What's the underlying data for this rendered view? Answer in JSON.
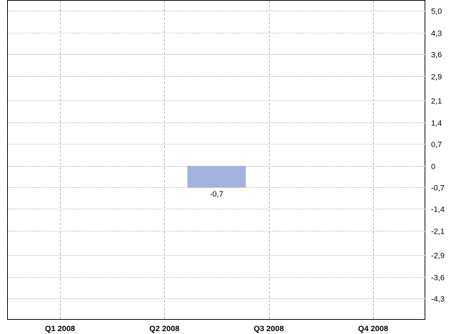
{
  "chart_data": {
    "type": "bar",
    "title": "",
    "xlabel": "",
    "ylabel": "",
    "categories": [
      "Q1 2008",
      "Q2 2008",
      "Q3 2008",
      "Q4 2008"
    ],
    "bars": [
      {
        "from": "Q2 2008",
        "to": "Q3 2008",
        "value": -0.7,
        "label": "-0,7"
      }
    ],
    "ylim": [
      -5.0,
      5.0
    ],
    "yticks": [
      {
        "value": 5.0,
        "label": "5,0"
      },
      {
        "value": 4.3,
        "label": "4,3"
      },
      {
        "value": 3.6,
        "label": "3,6"
      },
      {
        "value": 2.9,
        "label": "2,9"
      },
      {
        "value": 2.1,
        "label": "2,1"
      },
      {
        "value": 1.4,
        "label": "1,4"
      },
      {
        "value": 0.7,
        "label": "0,7"
      },
      {
        "value": 0.0,
        "label": "0"
      },
      {
        "value": -0.7,
        "label": "-0,7"
      },
      {
        "value": -1.4,
        "label": "-1,4"
      },
      {
        "value": -2.1,
        "label": "-2,1"
      },
      {
        "value": -2.9,
        "label": "-2,9"
      },
      {
        "value": -3.6,
        "label": "-3,6"
      },
      {
        "value": -4.3,
        "label": "-4,3"
      }
    ],
    "y_axis_position": "right",
    "grid": true,
    "bar_color": "#a3b1dc"
  }
}
